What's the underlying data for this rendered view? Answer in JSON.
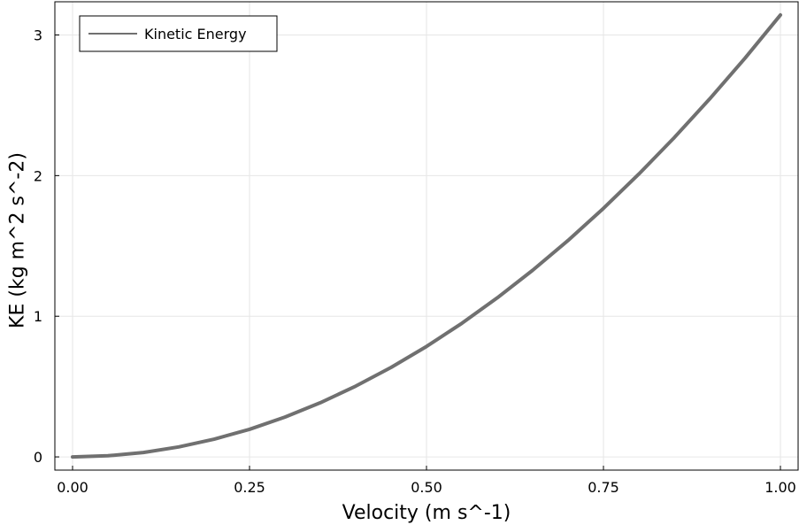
{
  "chart_data": {
    "type": "line",
    "title": "",
    "xlabel": "Velocity (m s^-1)",
    "ylabel": "KE (kg m^2 s^-2)",
    "xlim": [
      -0.025,
      1.025
    ],
    "ylim": [
      -0.094,
      3.236
    ],
    "x_ticks": [
      0.0,
      0.25,
      0.5,
      0.75,
      1.0
    ],
    "x_tick_labels": [
      "0.00",
      "0.25",
      "0.50",
      "0.75",
      "1.00"
    ],
    "y_ticks": [
      0,
      1,
      2,
      3
    ],
    "y_tick_labels": [
      "0",
      "1",
      "2",
      "3"
    ],
    "grid": true,
    "legend_position": "top-left",
    "series": [
      {
        "name": "Kinetic Energy",
        "color": "#707070",
        "x": [
          0.0,
          0.05,
          0.1,
          0.15,
          0.2,
          0.25,
          0.3,
          0.35,
          0.4,
          0.45,
          0.5,
          0.55,
          0.6,
          0.65,
          0.7,
          0.75,
          0.8,
          0.85,
          0.9,
          0.95,
          1.0
        ],
        "y": [
          0.0,
          0.008,
          0.031,
          0.071,
          0.126,
          0.196,
          0.283,
          0.385,
          0.503,
          0.636,
          0.785,
          0.95,
          1.131,
          1.327,
          1.539,
          1.767,
          2.011,
          2.27,
          2.545,
          2.835,
          3.142
        ]
      }
    ]
  }
}
